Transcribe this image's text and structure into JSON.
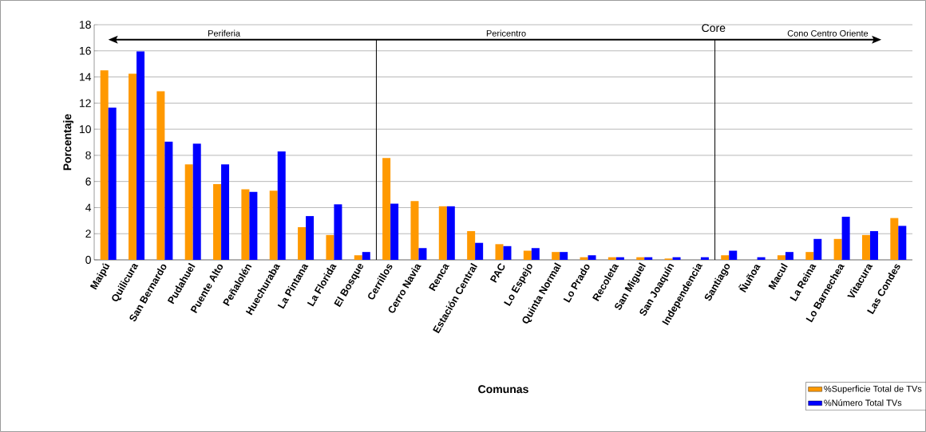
{
  "chart_data": {
    "type": "bar",
    "xlabel": "Comunas",
    "ylabel": "Porcentaje",
    "categories": [
      "Maipú",
      "Quilicura",
      "San Bernardo",
      "Pudahuel",
      "Puente Alto",
      "Peñalolén",
      "Huechuraba",
      "La Pintana",
      "La Florida",
      "El Bosque",
      "Cerrillos",
      "Cerro Navia",
      "Renca",
      "Estación Central",
      "PAC",
      "Lo Espejo",
      "Quinta Normal",
      "Lo Prado",
      "Recoleta",
      "San Miguel",
      "San Joaquín",
      "Independencia",
      "Santiago",
      "Ñuñoa",
      "Macul",
      "La Reina",
      "Lo Barnechea",
      "Vitacura",
      "Las Condes"
    ],
    "series": [
      {
        "name": "%Superficie Total de TVs",
        "color": "#ff9900",
        "values": [
          14.5,
          14.25,
          12.9,
          7.3,
          5.8,
          5.4,
          5.3,
          2.5,
          1.9,
          0.35,
          7.8,
          4.5,
          4.1,
          2.2,
          1.2,
          0.7,
          0.6,
          0.2,
          0.2,
          0.2,
          0.1,
          0,
          0.35,
          0,
          0.35,
          0.6,
          1.6,
          1.9,
          3.2
        ]
      },
      {
        "name": "%Número Total TVs",
        "color": "#0000ff",
        "values": [
          11.65,
          15.95,
          9.05,
          8.9,
          7.3,
          5.2,
          8.3,
          3.35,
          4.25,
          0.6,
          4.3,
          0.9,
          4.1,
          1.3,
          1.05,
          0.9,
          0.6,
          0.35,
          0.2,
          0.2,
          0.2,
          0.2,
          0.7,
          0.2,
          0.6,
          1.6,
          3.3,
          2.2,
          2.6
        ]
      }
    ],
    "ylim": [
      0,
      18
    ],
    "yticks": [
      0,
      2,
      4,
      6,
      8,
      10,
      12,
      14,
      16,
      18
    ],
    "grid": "y",
    "legend": "bottom right",
    "annotations": [
      "Periferia",
      "Pericentro",
      "Core",
      "Cono Centro Oriente"
    ]
  }
}
